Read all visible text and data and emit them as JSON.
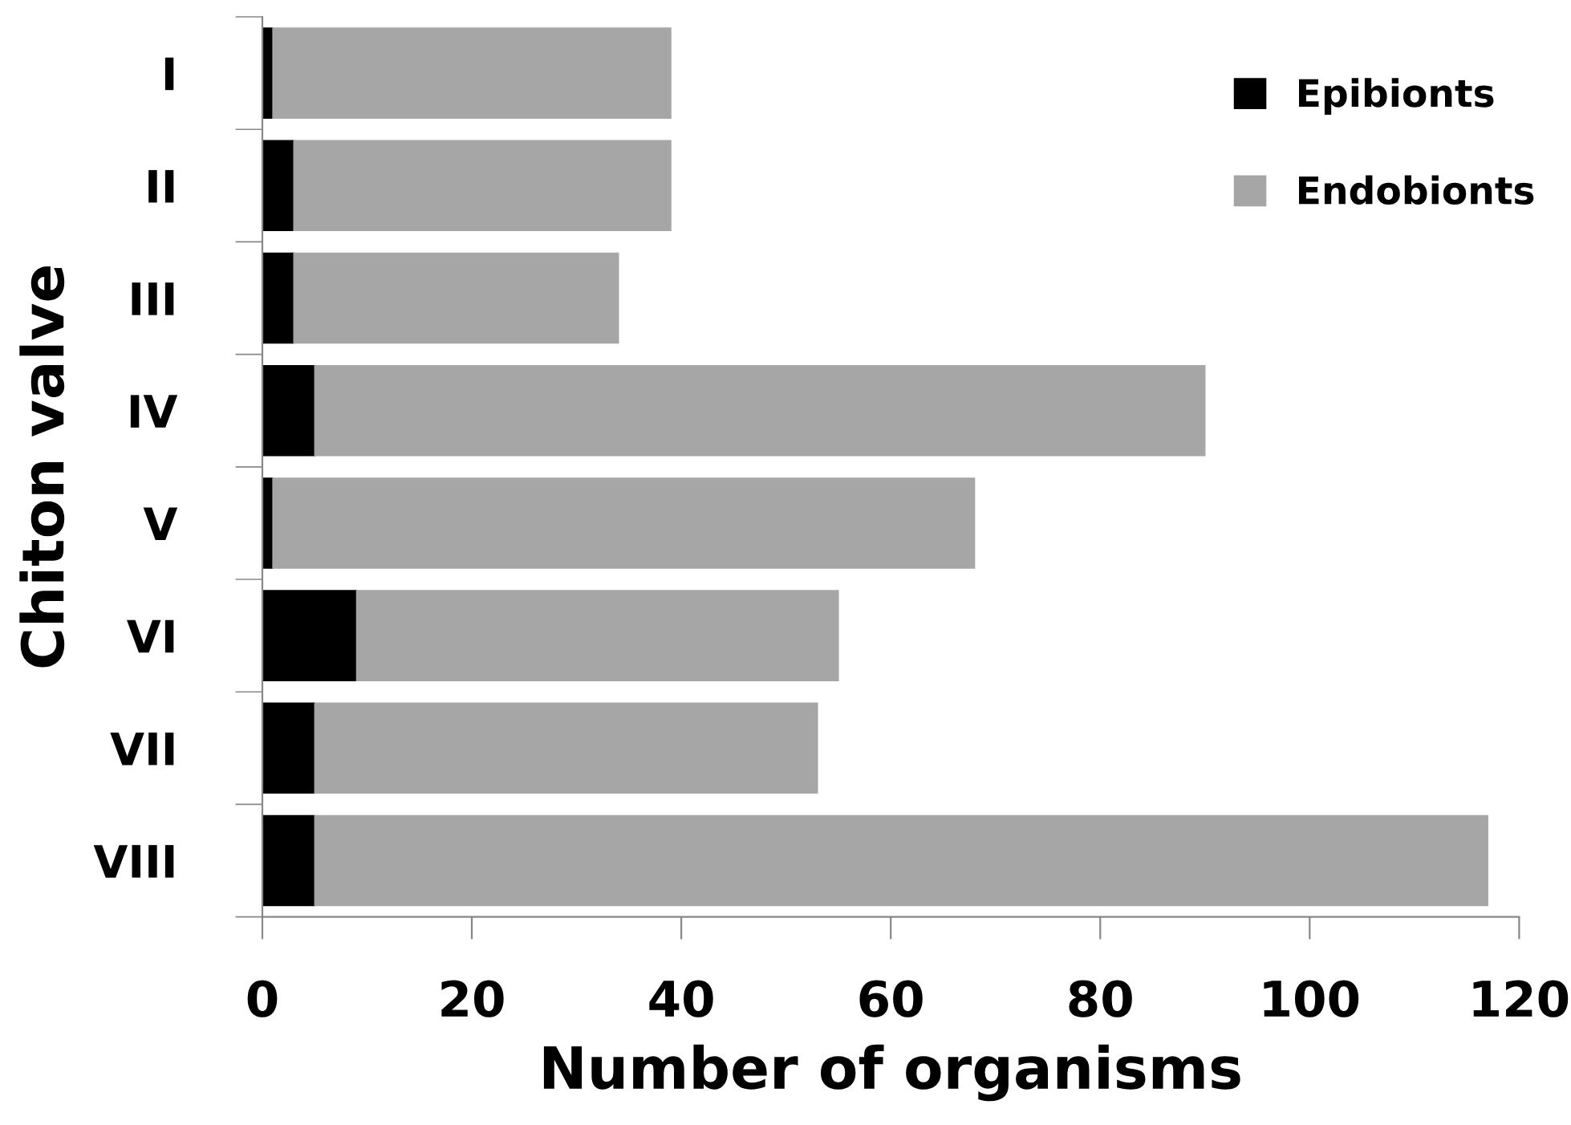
{
  "chart_data": {
    "type": "bar",
    "orientation": "horizontal",
    "stacked": true,
    "categories": [
      "I",
      "II",
      "III",
      "IV",
      "V",
      "VI",
      "VII",
      "VIII"
    ],
    "series": [
      {
        "name": "Epibionts",
        "color": "#000000",
        "values": [
          1,
          3,
          3,
          5,
          1,
          9,
          5,
          5
        ]
      },
      {
        "name": "Endobionts",
        "color": "#a6a6a6",
        "values": [
          38,
          36,
          31,
          85,
          67,
          46,
          48,
          112
        ]
      }
    ],
    "xlabel": "Number of organisms",
    "ylabel": "Chiton valve",
    "xlim": [
      0,
      120
    ],
    "xticks": [
      0,
      20,
      40,
      60,
      80,
      100,
      120
    ],
    "grid": false,
    "legend": "top right"
  }
}
